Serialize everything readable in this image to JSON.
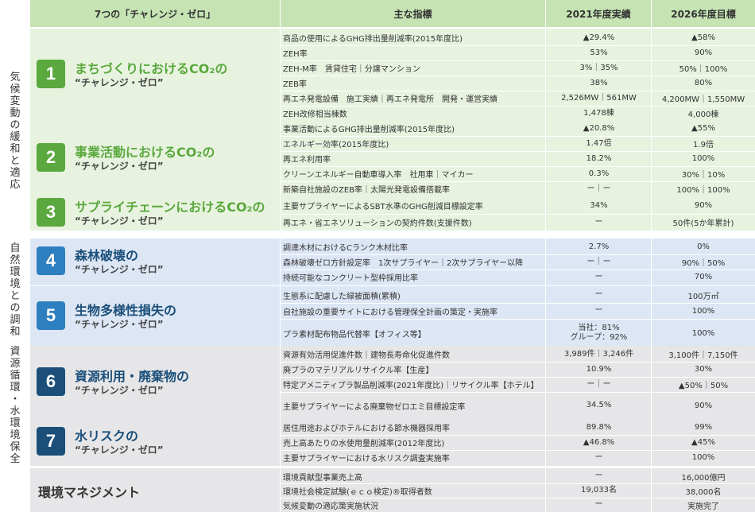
{
  "header": {
    "col1": "7つの「チャレンジ・ゼロ」",
    "col2": "主な指標",
    "col3": "2021年度実績",
    "col4": "2026年度目標"
  },
  "categories": [
    {
      "label": "気候変動の緩和と適応"
    },
    {
      "label": "自然環境との調和"
    },
    {
      "label": "資源循環・水環境保全"
    }
  ],
  "colors": {
    "green": "#5aa83e",
    "blue": "#2e7fc0",
    "navy": "#1b4f7a",
    "green_bg": "#e8f3df",
    "blue_bg": "#dde6f4",
    "gray_bg": "#e6e6e8",
    "header_bg": "#c5e3b3"
  },
  "groups": [
    {
      "num": "1",
      "title": "まちづくりにおけるCO₂の",
      "sub": "“チャレンジ・ゼロ”",
      "rows": [
        {
          "ind": "商品の使用によるGHG排出量削減率(2015年度比)",
          "v1": "▲29.4%",
          "v2": "▲58%"
        },
        {
          "ind": "ZEH率",
          "v1": "53%",
          "v2": "90%"
        },
        {
          "ind": "ZEH-M率　賃貸住宅｜分譲マンション",
          "v1": "3%｜35%",
          "v2": "50%｜100%"
        },
        {
          "ind": "ZEB率",
          "v1": "38%",
          "v2": "80%"
        },
        {
          "ind": "再エネ発電設備　施工実績｜再エネ発電所　開発・運営実績",
          "v1": "2,526MW｜561MW",
          "v2": "4,200MW｜1,550MW"
        },
        {
          "ind": "ZEH改修相当棟数",
          "v1": "1,478棟",
          "v2": "4,000棟"
        }
      ]
    },
    {
      "num": "2",
      "title": "事業活動におけるCO₂の",
      "sub": "“チャレンジ・ゼロ”",
      "rows": [
        {
          "ind": "事業活動によるGHG排出量削減率(2015年度比)",
          "v1": "▲20.8%",
          "v2": "▲55%"
        },
        {
          "ind": "エネルギー効率(2015年度比)",
          "v1": "1.47倍",
          "v2": "1.9倍"
        },
        {
          "ind": "再エネ利用率",
          "v1": "18.2%",
          "v2": "100%"
        },
        {
          "ind": "クリーンエネルギー自動車導入率　社用車｜マイカー",
          "v1": "0.3%",
          "v2": "30%｜10%"
        },
        {
          "ind": "新築自社施設のZEB率｜太陽光発電設備搭載率",
          "v1": "ー｜ー",
          "v2": "100%｜100%"
        }
      ]
    },
    {
      "num": "3",
      "title": "サプライチェーンにおけるCO₂の",
      "sub": "“チャレンジ・ゼロ”",
      "rows": [
        {
          "ind": "主要サプライヤーによるSBT水準のGHG削減目標設定率",
          "v1": "34%",
          "v2": "90%"
        },
        {
          "ind": "再エネ・省エネソリューションの契約件数(支援件数)",
          "v1": "ー",
          "v2": "50件(5か年累計)"
        }
      ]
    },
    {
      "num": "4",
      "title": "森林破壊の",
      "sub": "“チャレンジ・ゼロ”",
      "rows": [
        {
          "ind": "調達木材におけるCランク木材比率",
          "v1": "2.7%",
          "v2": "0%"
        },
        {
          "ind": "森林破壊ゼロ方針設定率　1次サプライヤー｜2次サプライヤー以降",
          "v1": "ー｜ー",
          "v2": "90%｜50%"
        },
        {
          "ind": "持続可能なコンクリート型枠採用比率",
          "v1": "ー",
          "v2": "70%"
        }
      ]
    },
    {
      "num": "5",
      "title": "生物多様性損失の",
      "sub": "“チャレンジ・ゼロ”",
      "rows": [
        {
          "ind": "生態系に配慮した緑被面積(累積)",
          "v1": "ー",
          "v2": "100万㎡"
        },
        {
          "ind": "自社施設の重要サイトにおける管理保全計画の策定・実施率",
          "v1": "ー",
          "v2": "100%"
        },
        {
          "ind": "プラ素材配布物品代替率【オフィス等】",
          "v1": "当社：81%",
          "v1b": "グループ：92%",
          "v2": "100%"
        }
      ]
    },
    {
      "num": "6",
      "title": "資源利用・廃棄物の",
      "sub": "“チャレンジ・ゼロ”",
      "rows": [
        {
          "ind": "資源有効活用促進件数｜建物長寿命化促進件数",
          "v1": "3,989件｜3,246件",
          "v2": "3,100件｜7,150件"
        },
        {
          "ind": "廃プラのマテリアルリサイクル率【生産】",
          "v1": "10.9%",
          "v2": "30%"
        },
        {
          "ind": "特定アメニティプラ製品削減率(2021年度比)｜リサイクル率【ホテル】",
          "v1": "ー｜ー",
          "v2": "▲50%｜50%"
        },
        {
          "ind": "主要サプライヤーによる廃棄物ゼロエミ目標設定率",
          "v1": "34.5%",
          "v2": "90%"
        }
      ]
    },
    {
      "num": "7",
      "title": "水リスクの",
      "sub": "“チャレンジ・ゼロ”",
      "rows": [
        {
          "ind": "居住用途およびホテルにおける節水機器採用率",
          "v1": "89.8%",
          "v2": "99%"
        },
        {
          "ind": "売上高あたりの水使用量削減率(2012年度比)",
          "v1": "▲46.8%",
          "v2": "▲45%"
        },
        {
          "ind": "主要サプライヤーにおける水リスク調査実施率",
          "v1": "ー",
          "v2": "100%"
        }
      ]
    }
  ],
  "management": {
    "title": "環境マネジメント",
    "rows": [
      {
        "ind": "環境貢献型事業売上高",
        "v1": "ー",
        "v2": "16,000億円"
      },
      {
        "ind": "環境社会検定試験(ｅｃｏ検定)®取得者数",
        "v1": "19,033名",
        "v2": "38,000名"
      },
      {
        "ind": "気候変動の適応策実施状況",
        "v1": "ー",
        "v2": "実施完了"
      }
    ]
  }
}
